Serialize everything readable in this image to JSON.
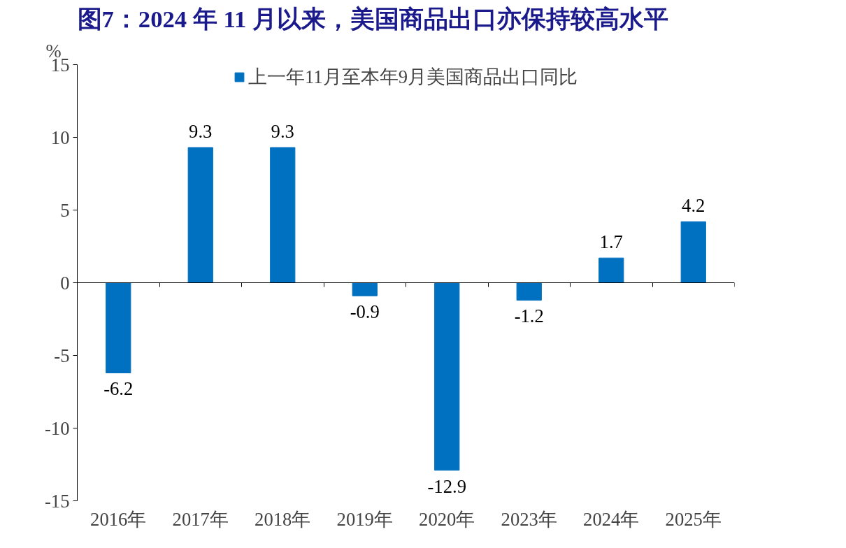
{
  "chart_data": {
    "type": "bar",
    "title": "图7：2024 年 11 月以来，美国商品出口亦保持较高水平",
    "ylabel": "%",
    "categories": [
      "2016年",
      "2017年",
      "2018年",
      "2019年",
      "2020年",
      "2023年",
      "2024年",
      "2025年"
    ],
    "series": [
      {
        "name": "上一年11月至本年9月美国商品出口同比",
        "color": "#0070c0",
        "values": [
          -6.2,
          9.3,
          9.3,
          -0.9,
          -12.9,
          -1.2,
          1.7,
          4.2
        ]
      }
    ],
    "ylim": [
      -15,
      15
    ],
    "yticks": [
      -15,
      -10,
      -5,
      0,
      5,
      10,
      15
    ],
    "ref_lines": [
      {
        "axis": "y",
        "value": 0,
        "color": "#000000"
      }
    ],
    "data_labels": true,
    "grid": false,
    "legend": "top"
  }
}
